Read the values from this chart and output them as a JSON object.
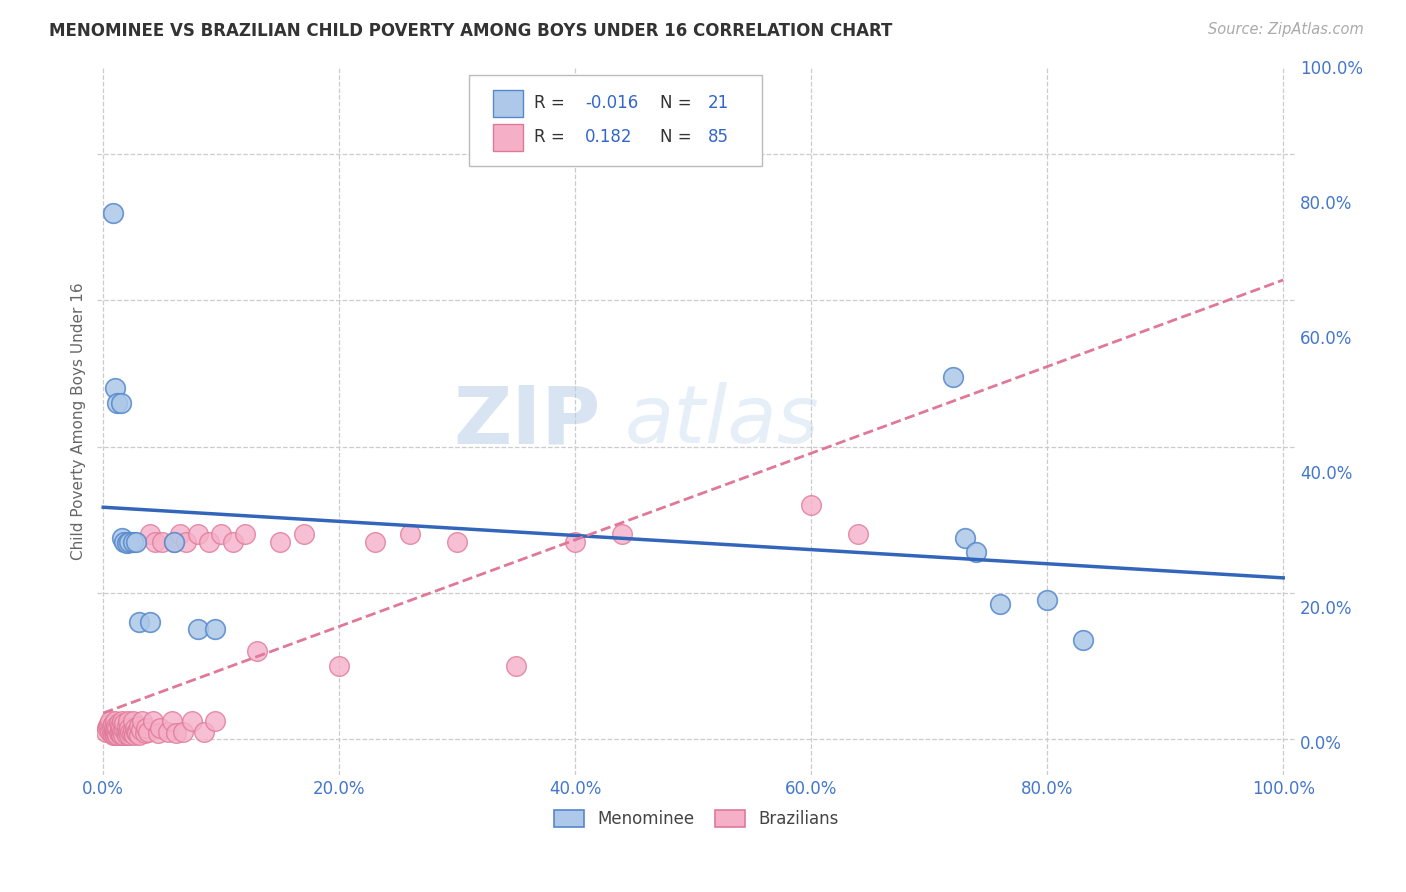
{
  "title": "MENOMINEE VS BRAZILIAN CHILD POVERTY AMONG BOYS UNDER 16 CORRELATION CHART",
  "source": "Source: ZipAtlas.com",
  "ylabel": "Child Poverty Among Boys Under 16",
  "tick_pcts": [
    0.0,
    0.2,
    0.4,
    0.6,
    0.8,
    1.0
  ],
  "tick_labels": [
    "0.0%",
    "20.0%",
    "40.0%",
    "60.0%",
    "80.0%",
    "100.0%"
  ],
  "xlim": [
    -0.005,
    1.01
  ],
  "ylim": [
    -0.05,
    0.92
  ],
  "menominee_R": -0.016,
  "menominee_N": 21,
  "brazilian_R": 0.182,
  "brazilian_N": 85,
  "menominee_color": "#adc8e8",
  "menominee_edge": "#5588cc",
  "menominee_line_color": "#3366bb",
  "brazilian_color": "#f5b0c8",
  "brazilian_edge": "#e07898",
  "brazilian_line_color": "#e07898",
  "menominee_x": [
    0.008,
    0.01,
    0.012,
    0.015,
    0.016,
    0.018,
    0.02,
    0.022,
    0.025,
    0.028,
    0.03,
    0.04,
    0.06,
    0.08,
    0.095,
    0.72,
    0.73,
    0.74,
    0.76,
    0.8,
    0.83
  ],
  "menominee_y": [
    0.72,
    0.48,
    0.46,
    0.46,
    0.275,
    0.27,
    0.268,
    0.27,
    0.27,
    0.27,
    0.16,
    0.16,
    0.27,
    0.15,
    0.15,
    0.495,
    0.275,
    0.256,
    0.185,
    0.19,
    0.135
  ],
  "brazilian_x": [
    0.002,
    0.003,
    0.004,
    0.005,
    0.006,
    0.006,
    0.007,
    0.007,
    0.008,
    0.008,
    0.009,
    0.009,
    0.01,
    0.01,
    0.01,
    0.011,
    0.011,
    0.012,
    0.012,
    0.013,
    0.013,
    0.014,
    0.014,
    0.015,
    0.015,
    0.016,
    0.016,
    0.017,
    0.018,
    0.018,
    0.019,
    0.02,
    0.02,
    0.021,
    0.021,
    0.022,
    0.022,
    0.023,
    0.024,
    0.025,
    0.025,
    0.026,
    0.027,
    0.028,
    0.029,
    0.03,
    0.03,
    0.032,
    0.033,
    0.035,
    0.036,
    0.038,
    0.04,
    0.042,
    0.044,
    0.046,
    0.048,
    0.05,
    0.055,
    0.058,
    0.06,
    0.062,
    0.065,
    0.068,
    0.07,
    0.075,
    0.08,
    0.085,
    0.09,
    0.095,
    0.1,
    0.11,
    0.12,
    0.13,
    0.15,
    0.17,
    0.2,
    0.23,
    0.26,
    0.3,
    0.35,
    0.4,
    0.44,
    0.6,
    0.64
  ],
  "brazilian_y": [
    0.01,
    0.015,
    0.018,
    0.02,
    0.01,
    0.025,
    0.008,
    0.018,
    0.005,
    0.02,
    0.008,
    0.015,
    0.005,
    0.012,
    0.025,
    0.008,
    0.018,
    0.005,
    0.015,
    0.008,
    0.022,
    0.01,
    0.018,
    0.006,
    0.015,
    0.01,
    0.025,
    0.006,
    0.012,
    0.022,
    0.008,
    0.005,
    0.018,
    0.01,
    0.025,
    0.006,
    0.015,
    0.01,
    0.008,
    0.012,
    0.025,
    0.006,
    0.015,
    0.01,
    0.008,
    0.005,
    0.018,
    0.012,
    0.025,
    0.008,
    0.015,
    0.01,
    0.28,
    0.025,
    0.27,
    0.008,
    0.015,
    0.27,
    0.01,
    0.025,
    0.27,
    0.008,
    0.28,
    0.01,
    0.27,
    0.025,
    0.28,
    0.01,
    0.27,
    0.025,
    0.28,
    0.27,
    0.28,
    0.12,
    0.27,
    0.28,
    0.1,
    0.27,
    0.28,
    0.27,
    0.1,
    0.27,
    0.28,
    0.32,
    0.28
  ]
}
